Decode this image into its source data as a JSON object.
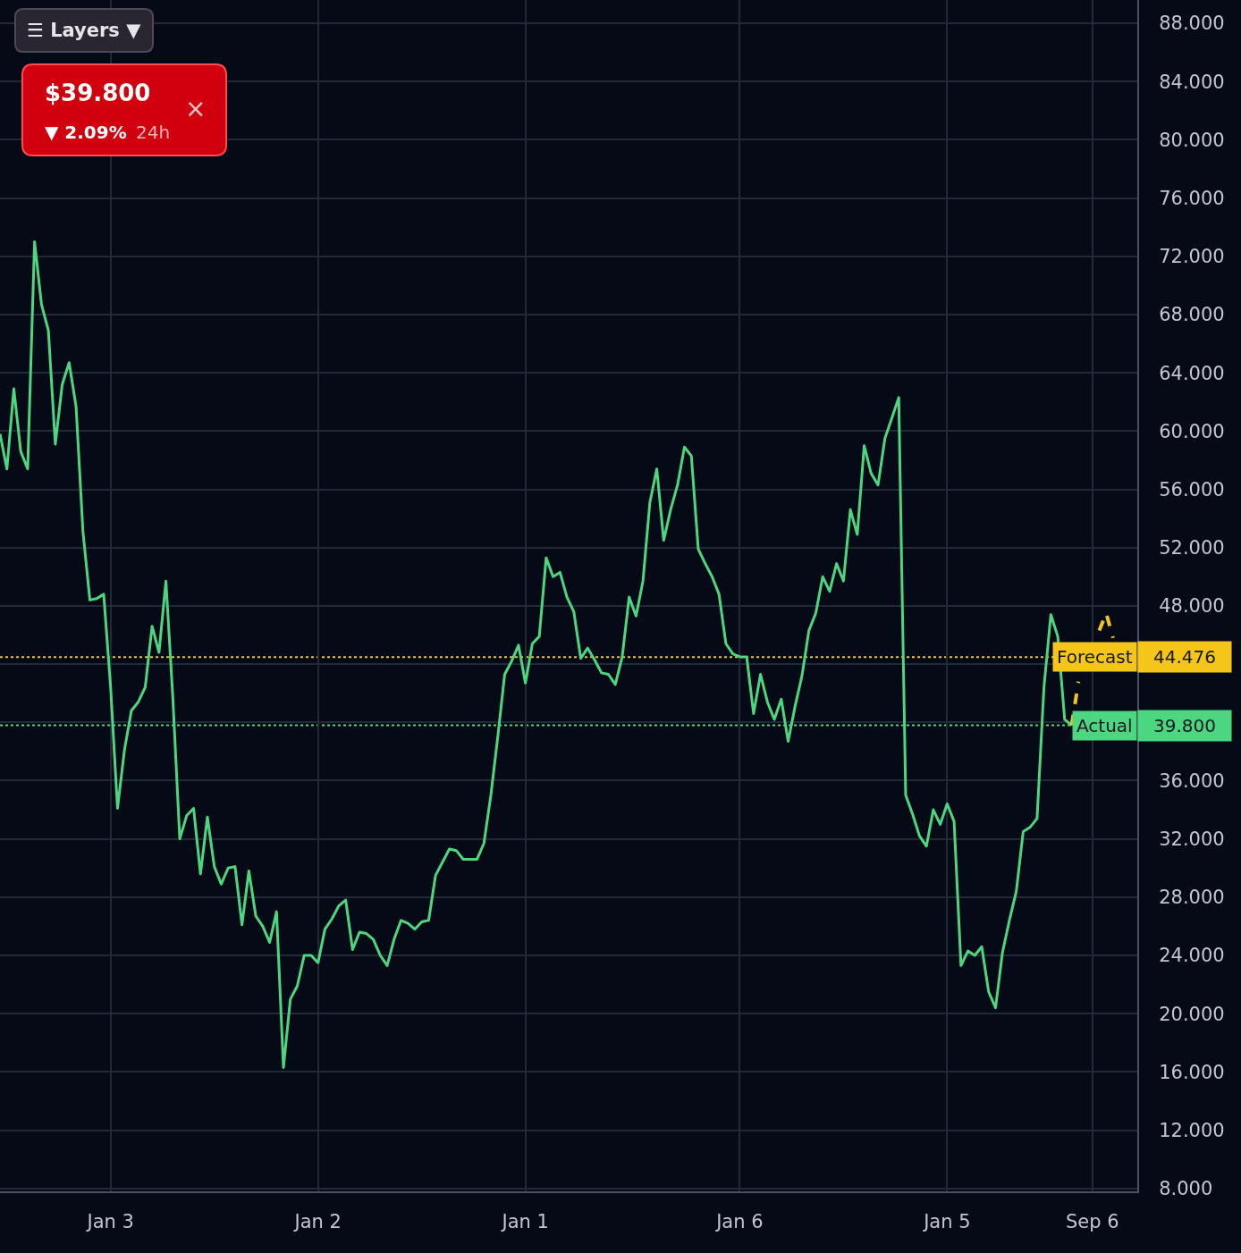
{
  "chart_data": {
    "type": "line",
    "categories": [
      null,
      null,
      null,
      null,
      null,
      null,
      null,
      null,
      null,
      null,
      null,
      null,
      null,
      null,
      null,
      null,
      "Jan 3",
      null,
      null,
      null,
      null,
      null,
      null,
      null,
      null,
      null,
      null,
      null,
      null,
      null,
      null,
      null,
      null,
      null,
      null,
      null,
      null,
      null,
      null,
      null,
      null,
      null,
      null,
      null,
      null,
      null,
      "Jan 2",
      null,
      null,
      null,
      null,
      null,
      null,
      null,
      null,
      null,
      null,
      null,
      null,
      null,
      null,
      null,
      null,
      null,
      null,
      null,
      null,
      null,
      null,
      null,
      null,
      null,
      null,
      null,
      null,
      null,
      "Jan 1",
      null,
      null,
      null,
      null,
      null,
      null,
      null,
      null,
      null,
      null,
      null,
      null,
      null,
      null,
      null,
      null,
      null,
      null,
      null,
      null,
      null,
      null,
      null,
      null,
      null,
      null,
      null,
      null,
      null,
      null,
      "Jan 6",
      null,
      null,
      null,
      null,
      null,
      null,
      null,
      null,
      null,
      null,
      null,
      null,
      null,
      null,
      null,
      null,
      null,
      null,
      null,
      null,
      null,
      null,
      null,
      null,
      null,
      null,
      null,
      null,
      null,
      "Jan 5",
      null,
      null,
      null,
      null,
      null,
      null,
      null,
      null,
      null,
      null,
      null,
      null,
      null,
      null,
      null,
      null,
      null,
      null,
      null,
      null,
      "Sep 6",
      null,
      null,
      null,
      null,
      null,
      null
    ],
    "series": [
      {
        "color": "#4dd680",
        "values": [
          59.8,
          57.4,
          62.9,
          58.6,
          57.4,
          73.0,
          68.7,
          66.9,
          59.1,
          63.2,
          64.7,
          61.7,
          53.1,
          48.4,
          48.5,
          48.8,
          42.4,
          34.1,
          38.1,
          40.8,
          41.4,
          42.4,
          46.6,
          44.8,
          49.7,
          41.7,
          32.0,
          33.6,
          34.1,
          29.6,
          33.5,
          30.1,
          28.9,
          30.0,
          30.1,
          26.1,
          29.8,
          26.7,
          26.0,
          24.9,
          27.0,
          16.3,
          21.0,
          21.9,
          24.0,
          24.0,
          23.5,
          25.8,
          26.5,
          27.4,
          27.8,
          24.4,
          25.6,
          25.5,
          25.1,
          24.0,
          23.3,
          25.1,
          26.4,
          26.2,
          25.8,
          26.3,
          26.4,
          29.5,
          30.4,
          31.3,
          31.2,
          30.6,
          30.6,
          30.6,
          31.7,
          35.0,
          39.0,
          43.3,
          44.2,
          45.3,
          42.7,
          45.4,
          45.9,
          51.3,
          50.0,
          50.3,
          48.6,
          47.6,
          44.4,
          45.1,
          44.3,
          43.4,
          43.3,
          42.6,
          44.5,
          48.6,
          47.3,
          49.7,
          55.1,
          57.4,
          52.5,
          54.6,
          56.3,
          58.9,
          58.3,
          51.9,
          50.9,
          50.0,
          48.8,
          45.4,
          44.7,
          44.5,
          44.5,
          40.6,
          43.3,
          41.4,
          40.2,
          41.6,
          38.7,
          41.1,
          43.2,
          46.3,
          47.5,
          50.0,
          49.0,
          50.9,
          49.7,
          54.6,
          52.9,
          59.0,
          57.1,
          56.3,
          59.5,
          60.9,
          62.3,
          35.0,
          33.7,
          32.2,
          31.5,
          34.0,
          33.0,
          34.4,
          33.2,
          23.3,
          24.3,
          24.0,
          24.6,
          21.5,
          20.4,
          24.2,
          26.4,
          28.4,
          32.5,
          32.8,
          33.4,
          42.4,
          47.4,
          45.9,
          40.2,
          39.8,
          null,
          null,
          null,
          null,
          null,
          null,
          null,
          null,
          null
        ]
      },
      {
        "color": "#f5c518",
        "line_style": "dashed",
        "values": [
          null,
          null,
          null,
          null,
          null,
          null,
          null,
          null,
          null,
          null,
          null,
          null,
          null,
          null,
          null,
          null,
          null,
          null,
          null,
          null,
          null,
          null,
          null,
          null,
          null,
          null,
          null,
          null,
          null,
          null,
          null,
          null,
          null,
          null,
          null,
          null,
          null,
          null,
          null,
          null,
          null,
          null,
          null,
          null,
          null,
          null,
          null,
          null,
          null,
          null,
          null,
          null,
          null,
          null,
          null,
          null,
          null,
          null,
          null,
          null,
          null,
          null,
          null,
          null,
          null,
          null,
          null,
          null,
          null,
          null,
          null,
          null,
          null,
          null,
          null,
          null,
          null,
          null,
          null,
          null,
          null,
          null,
          null,
          null,
          null,
          null,
          null,
          null,
          null,
          null,
          null,
          null,
          null,
          null,
          null,
          null,
          null,
          null,
          null,
          null,
          null,
          null,
          null,
          null,
          null,
          null,
          null,
          null,
          null,
          null,
          null,
          null,
          null,
          null,
          null,
          null,
          null,
          null,
          null,
          null,
          null,
          null,
          null,
          null,
          null,
          null,
          null,
          null,
          null,
          null,
          null,
          null,
          null,
          null,
          null,
          null,
          null,
          null,
          null,
          null,
          null,
          null,
          null,
          null,
          null,
          null,
          null,
          null,
          null,
          null,
          null,
          null,
          null,
          null,
          null,
          39.8,
          42.8,
          null,
          null,
          46.3,
          47.5,
          45.8,
          null,
          null,
          null
        ]
      }
    ],
    "ylim": [
      7.8,
      89.6
    ],
    "yticks": [
      {
        "value": 8,
        "label": "8.000"
      },
      {
        "value": 12,
        "label": "12.000"
      },
      {
        "value": 16,
        "label": "16.000"
      },
      {
        "value": 20,
        "label": "20.000"
      },
      {
        "value": 24,
        "label": "24.000"
      },
      {
        "value": 28,
        "label": "28.000"
      },
      {
        "value": 32,
        "label": "32.000"
      },
      {
        "value": 36,
        "label": "36.000"
      },
      {
        "value": 40,
        "label": null
      },
      {
        "value": 44,
        "label": null
      },
      {
        "value": 48,
        "label": "48.000"
      },
      {
        "value": 52,
        "label": "52.000"
      },
      {
        "value": 56,
        "label": "56.000"
      },
      {
        "value": 60,
        "label": "60.000"
      },
      {
        "value": 64,
        "label": "64.000"
      },
      {
        "value": 68,
        "label": "68.000"
      },
      {
        "value": 72,
        "label": "72.000"
      },
      {
        "value": 76,
        "label": "76.000"
      },
      {
        "value": 80,
        "label": "80.000"
      },
      {
        "value": 84,
        "label": "84.000"
      },
      {
        "value": 88,
        "label": "88.000"
      }
    ],
    "grid": true,
    "ref_lines": [
      {
        "axis": "y",
        "value": 44.476,
        "label": "Forecast",
        "color": "#f5c518",
        "line_style": "dotted"
      },
      {
        "axis": "y",
        "value": 39.8,
        "label": "Actual",
        "color": "#4dd680",
        "line_style": "dotted"
      }
    ],
    "annotations": [
      "☰ Layers ▼",
      "$39.800",
      "×",
      "▼ 2.09%",
      "24h",
      "44.476",
      "39.800"
    ]
  }
}
